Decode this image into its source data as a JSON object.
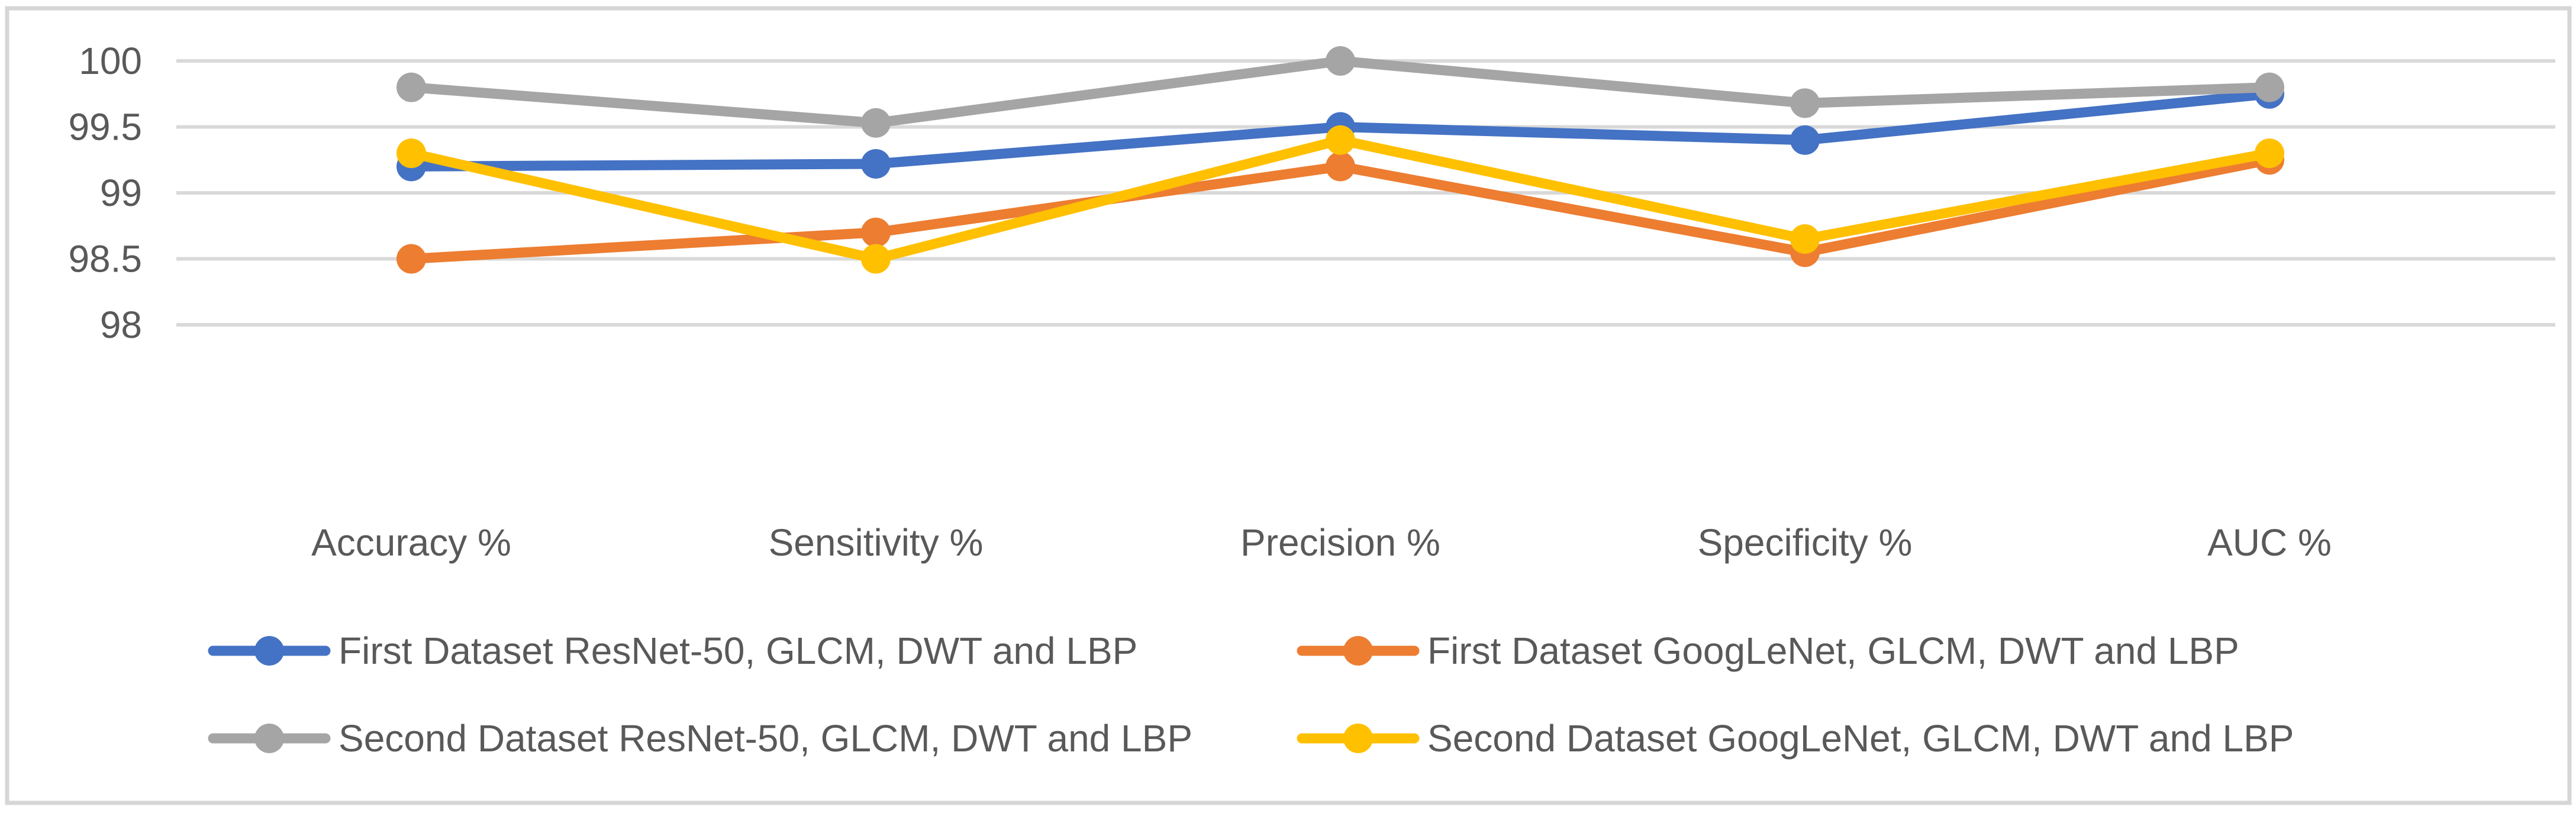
{
  "chart_data": {
    "type": "line",
    "title": "",
    "categories": [
      "Accuracy %",
      "Sensitivity %",
      "Precision %",
      "Specificity %",
      "AUC %"
    ],
    "series": [
      {
        "name": "First Dataset  ResNet-50, GLCM, DWT and LBP",
        "color": "#4472C4",
        "marker": "circle",
        "values": [
          99.2,
          99.22,
          99.5,
          99.4,
          99.75
        ]
      },
      {
        "name": "First Dataset  GoogLeNet, GLCM, DWT and LBP",
        "color": "#ED7D31",
        "marker": "circle",
        "values": [
          98.5,
          98.7,
          99.2,
          98.55,
          99.25
        ]
      },
      {
        "name": "Second Dataset  ResNet-50, GLCM, DWT and LBP",
        "color": "#A5A5A5",
        "marker": "circle",
        "values": [
          99.8,
          99.53,
          100.0,
          99.68,
          99.8
        ]
      },
      {
        "name": "Second Dataset  GoogLeNet, GLCM, DWT and LBP",
        "color": "#FFC000",
        "marker": "circle",
        "values": [
          99.3,
          98.5,
          99.4,
          98.65,
          99.3
        ]
      }
    ],
    "y_axis": {
      "min": 98,
      "max": 100,
      "major_unit": 0.5,
      "tick_labels": [
        "100",
        "99.5",
        "99",
        "98.5",
        "98"
      ]
    },
    "x_axis_label": "",
    "y_axis_label": "",
    "grid": true,
    "legend_position": "bottom",
    "legend_rows": [
      [
        0,
        1
      ],
      [
        2,
        3
      ]
    ],
    "colors": {
      "gridline": "#D9D9D9",
      "border": "#D6D6D6",
      "axis_text": "#595959",
      "background": "#FFFFFF"
    }
  }
}
